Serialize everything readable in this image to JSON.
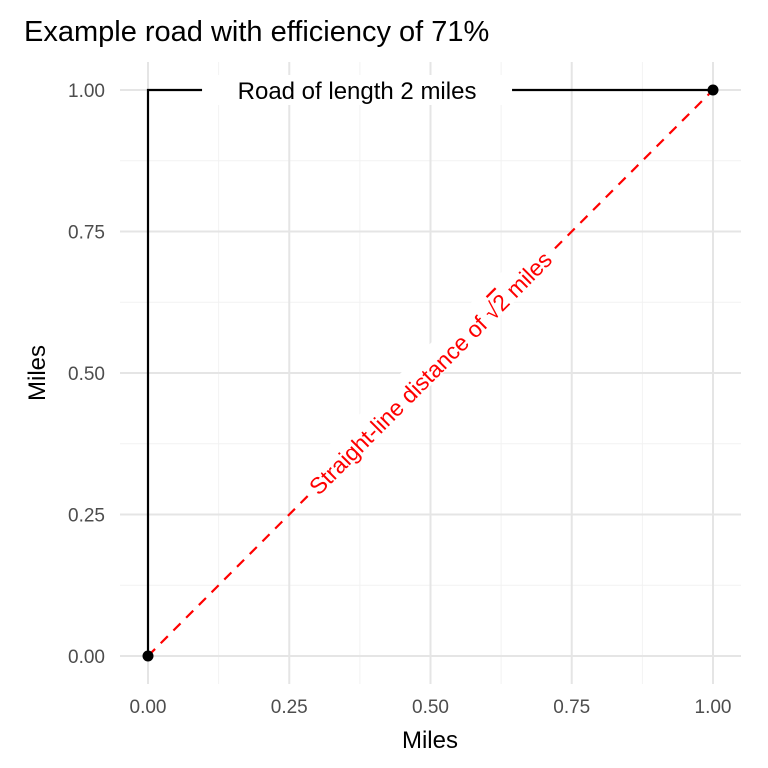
{
  "chart_data": {
    "type": "line",
    "title": "Example road with efficiency of 71%",
    "xlabel": "Miles",
    "ylabel": "Miles",
    "xlim": [
      0,
      1
    ],
    "ylim": [
      0,
      1
    ],
    "x_ticks": [
      0,
      0.25,
      0.5,
      0.75,
      1
    ],
    "y_ticks": [
      0,
      0.25,
      0.5,
      0.75,
      1
    ],
    "x_tick_labels": [
      "0.00",
      "0.25",
      "0.50",
      "0.75",
      "1.00"
    ],
    "y_tick_labels": [
      "0.00",
      "0.25",
      "0.50",
      "0.75",
      "1.00"
    ],
    "grid": true,
    "series": [
      {
        "style": "solid",
        "color": "#000000",
        "points": [
          [
            0,
            0
          ],
          [
            0,
            1
          ],
          [
            1,
            1
          ]
        ]
      },
      {
        "style": "dashed",
        "color": "#ff0000",
        "points": [
          [
            0,
            0
          ],
          [
            1,
            1
          ]
        ]
      }
    ],
    "endpoints": [
      [
        0,
        0
      ],
      [
        1,
        1
      ]
    ],
    "annotations": [
      {
        "text": "Road of length 2 miles",
        "x": 0.37,
        "y": 1.0,
        "color": "#000000"
      },
      {
        "text_before": "Straight-line distance of ",
        "radical": "√",
        "radicand": "2",
        "text_after": " miles",
        "x": 0.5,
        "y": 0.5,
        "color": "#ff0000"
      }
    ]
  }
}
